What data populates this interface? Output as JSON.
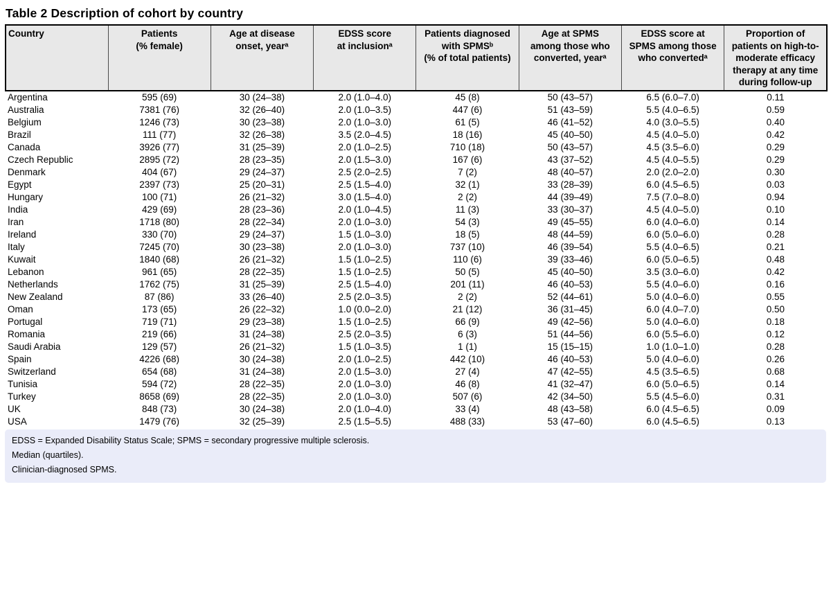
{
  "title": "Table 2 Description of cohort by country",
  "colors": {
    "header_bg": "#e8e8e8",
    "footnote_bg": "#eaecf9",
    "border": "#000000",
    "page_bg": "#ffffff"
  },
  "table": {
    "headers": [
      {
        "id": "country",
        "label": "Country"
      },
      {
        "id": "patients",
        "label": "Patients\n(% female)"
      },
      {
        "id": "age_onset",
        "label": "Age at disease\nonset, yearᵃ"
      },
      {
        "id": "edss_inclusion",
        "label": "EDSS score\nat inclusionᵃ"
      },
      {
        "id": "spms_diagnosed",
        "label": "Patients diagnosed\nwith SPMSᵇ\n(% of total patients)"
      },
      {
        "id": "age_spms",
        "label": "Age at SPMS\namong those who\nconverted, yearᵃ"
      },
      {
        "id": "edss_spms",
        "label": "EDSS score at\nSPMS among those\nwho convertedᵃ"
      },
      {
        "id": "proportion_therapy",
        "label": "Proportion of\npatients on high-to-\nmoderate efficacy\ntherapy at any time\nduring follow-up"
      }
    ],
    "rows": [
      [
        "Argentina",
        "595 (69)",
        "30 (24–38)",
        "2.0 (1.0–4.0)",
        "45 (8)",
        "50 (43–57)",
        "6.5 (6.0–7.0)",
        "0.11"
      ],
      [
        "Australia",
        "7381 (76)",
        "32 (26–40)",
        "2.0 (1.0–3.5)",
        "447 (6)",
        "51 (43–59)",
        "5.5 (4.0–6.5)",
        "0.59"
      ],
      [
        "Belgium",
        "1246 (73)",
        "30 (23–38)",
        "2.0 (1.0–3.0)",
        "61 (5)",
        "46 (41–52)",
        "4.0 (3.0–5.5)",
        "0.40"
      ],
      [
        "Brazil",
        "111 (77)",
        "32 (26–38)",
        "3.5 (2.0–4.5)",
        "18 (16)",
        "45 (40–50)",
        "4.5 (4.0–5.0)",
        "0.42"
      ],
      [
        "Canada",
        "3926 (77)",
        "31 (25–39)",
        "2.0 (1.0–2.5)",
        "710 (18)",
        "50 (43–57)",
        "4.5 (3.5–6.0)",
        "0.29"
      ],
      [
        "Czech Republic",
        "2895 (72)",
        "28 (23–35)",
        "2.0 (1.5–3.0)",
        "167 (6)",
        "43 (37–52)",
        "4.5 (4.0–5.5)",
        "0.29"
      ],
      [
        "Denmark",
        "404 (67)",
        "29 (24–37)",
        "2.5 (2.0–2.5)",
        "7 (2)",
        "48 (40–57)",
        "2.0 (2.0–2.0)",
        "0.30"
      ],
      [
        "Egypt",
        "2397 (73)",
        "25 (20–31)",
        "2.5 (1.5–4.0)",
        "32 (1)",
        "33 (28–39)",
        "6.0 (4.5–6.5)",
        "0.03"
      ],
      [
        "Hungary",
        "100 (71)",
        "26 (21–32)",
        "3.0 (1.5–4.0)",
        "2 (2)",
        "44 (39–49)",
        "7.5 (7.0–8.0)",
        "0.94"
      ],
      [
        "India",
        "429 (69)",
        "28 (23–36)",
        "2.0 (1.0–4.5)",
        "11 (3)",
        "33 (30–37)",
        "4.5 (4.0–5.0)",
        "0.10"
      ],
      [
        "Iran",
        "1718 (80)",
        "28 (22–34)",
        "2.0 (1.0–3.0)",
        "54 (3)",
        "49 (45–55)",
        "6.0 (4.0–6.0)",
        "0.14"
      ],
      [
        "Ireland",
        "330 (70)",
        "29 (24–37)",
        "1.5 (1.0–3.0)",
        "18 (5)",
        "48 (44–59)",
        "6.0 (5.0–6.0)",
        "0.28"
      ],
      [
        "Italy",
        "7245 (70)",
        "30 (23–38)",
        "2.0 (1.0–3.0)",
        "737 (10)",
        "46 (39–54)",
        "5.5 (4.0–6.5)",
        "0.21"
      ],
      [
        "Kuwait",
        "1840 (68)",
        "26 (21–32)",
        "1.5 (1.0–2.5)",
        "110 (6)",
        "39 (33–46)",
        "6.0 (5.0–6.5)",
        "0.48"
      ],
      [
        "Lebanon",
        "961 (65)",
        "28 (22–35)",
        "1.5 (1.0–2.5)",
        "50 (5)",
        "45 (40–50)",
        "3.5 (3.0–6.0)",
        "0.42"
      ],
      [
        "Netherlands",
        "1762 (75)",
        "31 (25–39)",
        "2.5 (1.5–4.0)",
        "201 (11)",
        "46 (40–53)",
        "5.5 (4.0–6.0)",
        "0.16"
      ],
      [
        "New Zealand",
        "87 (86)",
        "33 (26–40)",
        "2.5 (2.0–3.5)",
        "2 (2)",
        "52 (44–61)",
        "5.0 (4.0–6.0)",
        "0.55"
      ],
      [
        "Oman",
        "173 (65)",
        "26 (22–32)",
        "1.0 (0.0–2.0)",
        "21 (12)",
        "36 (31–45)",
        "6.0 (4.0–7.0)",
        "0.50"
      ],
      [
        "Portugal",
        "719 (71)",
        "29 (23–38)",
        "1.5 (1.0–2.5)",
        "66 (9)",
        "49 (42–56)",
        "5.0 (4.0–6.0)",
        "0.18"
      ],
      [
        "Romania",
        "219 (66)",
        "31 (24–38)",
        "2.5 (2.0–3.5)",
        "6 (3)",
        "51 (44–56)",
        "6.0 (5.5–6.0)",
        "0.12"
      ],
      [
        "Saudi Arabia",
        "129 (57)",
        "26 (21–32)",
        "1.5 (1.0–3.5)",
        "1 (1)",
        "15 (15–15)",
        "1.0 (1.0–1.0)",
        "0.28"
      ],
      [
        "Spain",
        "4226 (68)",
        "30 (24–38)",
        "2.0 (1.0–2.5)",
        "442 (10)",
        "46 (40–53)",
        "5.0 (4.0–6.0)",
        "0.26"
      ],
      [
        "Switzerland",
        "654 (68)",
        "31 (24–38)",
        "2.0 (1.5–3.0)",
        "27 (4)",
        "47 (42–55)",
        "4.5 (3.5–6.5)",
        "0.68"
      ],
      [
        "Tunisia",
        "594 (72)",
        "28 (22–35)",
        "2.0 (1.0–3.0)",
        "46 (8)",
        "41 (32–47)",
        "6.0 (5.0–6.5)",
        "0.14"
      ],
      [
        "Turkey",
        "8658 (69)",
        "28 (22–35)",
        "2.0 (1.0–3.0)",
        "507 (6)",
        "42 (34–50)",
        "5.5 (4.5–6.0)",
        "0.31"
      ],
      [
        "UK",
        "848 (73)",
        "30 (24–38)",
        "2.0 (1.0–4.0)",
        "33 (4)",
        "48 (43–58)",
        "6.0 (4.5–6.5)",
        "0.09"
      ],
      [
        "USA",
        "1479 (76)",
        "32 (25–39)",
        "2.5 (1.5–5.5)",
        "488 (33)",
        "53 (47–60)",
        "6.0 (4.5–6.5)",
        "0.13"
      ]
    ]
  },
  "footnotes": [
    "EDSS = Expanded Disability Status Scale; SPMS = secondary progressive multiple sclerosis.",
    "Median (quartiles).",
    "Clinician-diagnosed SPMS."
  ]
}
